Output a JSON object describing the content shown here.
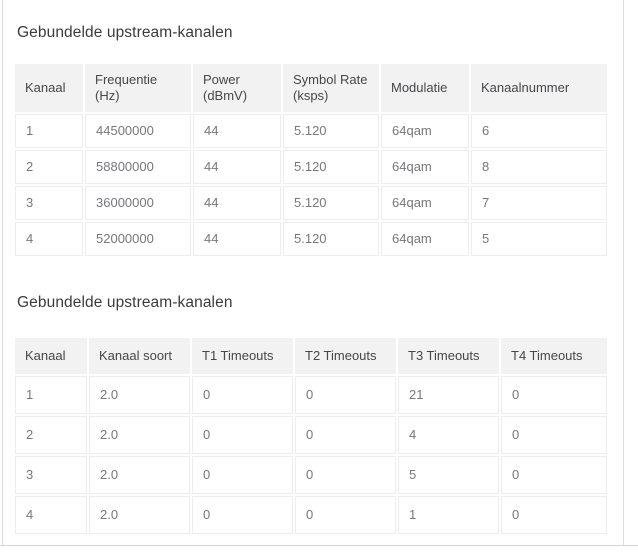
{
  "page": {
    "accent_color": "#f0913d",
    "border_color": "#dcdcdc",
    "header_bg_color": "#f2f2f2"
  },
  "sections": [
    {
      "title": "Gebundelde upstream-kanalen",
      "table": {
        "headers": [
          "Kanaal",
          "Frequentie (Hz)",
          "Power (dBmV)",
          "Symbol Rate (ksps)",
          "Modulatie",
          "Kanaalnummer"
        ],
        "rows": [
          [
            "1",
            "44500000",
            "44",
            "5.120",
            "64qam",
            "6"
          ],
          [
            "2",
            "58800000",
            "44",
            "5.120",
            "64qam",
            "8"
          ],
          [
            "3",
            "36000000",
            "44",
            "5.120",
            "64qam",
            "7"
          ],
          [
            "4",
            "52000000",
            "44",
            "5.120",
            "64qam",
            "5"
          ]
        ]
      }
    },
    {
      "title": "Gebundelde upstream-kanalen",
      "table": {
        "headers": [
          "Kanaal",
          "Kanaal soort",
          "T1 Timeouts",
          "T2 Timeouts",
          "T3 Timeouts",
          "T4 Timeouts"
        ],
        "rows": [
          [
            "1",
            "2.0",
            "0",
            "0",
            "21",
            "0"
          ],
          [
            "2",
            "2.0",
            "0",
            "0",
            "4",
            "0"
          ],
          [
            "3",
            "2.0",
            "0",
            "0",
            "5",
            "0"
          ],
          [
            "4",
            "2.0",
            "0",
            "0",
            "1",
            "0"
          ]
        ]
      }
    }
  ]
}
